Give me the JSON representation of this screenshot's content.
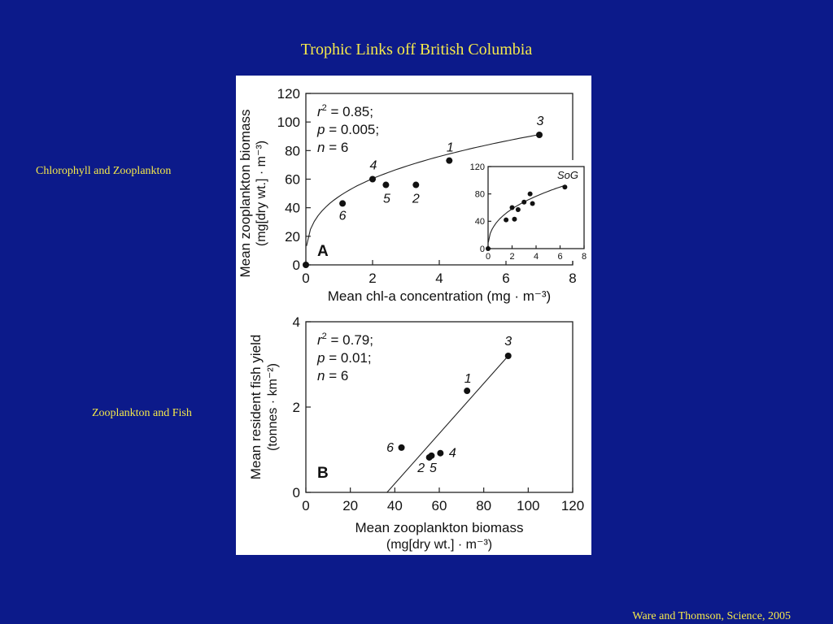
{
  "slide": {
    "title": "Trophic Links off British Columbia",
    "label_top": "Chlorophyll and Zooplankton",
    "label_bottom": "Zooplankton and Fish",
    "citation": "Ware and Thomson, Science, 2005"
  },
  "colors": {
    "background": "#0c1a8a",
    "text": "#f5e94a",
    "panel": "#ffffff"
  },
  "chart_data": [
    {
      "type": "scatter",
      "panel_label": "A",
      "xlabel": "Mean chl-a concentration (mg · m⁻³)",
      "ylabel_line1": "Mean zooplankton biomass",
      "ylabel_line2": "(mg[dry wt.] · m⁻³)",
      "xlim": [
        0,
        8
      ],
      "ylim": [
        0,
        120
      ],
      "xticks": [
        0,
        2,
        4,
        6,
        8
      ],
      "yticks": [
        0,
        20,
        40,
        60,
        80,
        100,
        120
      ],
      "stats": {
        "r2": "= 0.85;",
        "p": "= 0.005;",
        "n": "= 6"
      },
      "points": [
        {
          "x": 0,
          "y": 0,
          "label": ""
        },
        {
          "x": 1.1,
          "y": 43,
          "label": "6"
        },
        {
          "x": 2.0,
          "y": 60,
          "label": "4"
        },
        {
          "x": 2.4,
          "y": 56,
          "label": "5"
        },
        {
          "x": 3.3,
          "y": 56,
          "label": "2"
        },
        {
          "x": 4.3,
          "y": 73,
          "label": "1"
        },
        {
          "x": 7.0,
          "y": 91,
          "label": "3"
        }
      ],
      "fit": "power",
      "inset": {
        "label": "SoG",
        "xlim": [
          0,
          8
        ],
        "ylim": [
          0,
          120
        ],
        "xticks": [
          0,
          2,
          4,
          6,
          8
        ],
        "yticks": [
          0,
          40,
          80,
          120
        ],
        "points": [
          {
            "x": 0,
            "y": 0
          },
          {
            "x": 1.5,
            "y": 42
          },
          {
            "x": 2.0,
            "y": 60
          },
          {
            "x": 2.2,
            "y": 43
          },
          {
            "x": 2.5,
            "y": 57
          },
          {
            "x": 3.0,
            "y": 68
          },
          {
            "x": 3.5,
            "y": 80
          },
          {
            "x": 3.7,
            "y": 66
          },
          {
            "x": 6.4,
            "y": 90
          }
        ]
      }
    },
    {
      "type": "scatter",
      "panel_label": "B",
      "xlabel_line1": "Mean zooplankton biomass",
      "xlabel_line2": "(mg[dry wt.] · m⁻³)",
      "ylabel_line1": "Mean resident fish yield",
      "ylabel_line2": "(tonnes · km⁻²)",
      "xlim": [
        0,
        120
      ],
      "ylim": [
        0,
        4
      ],
      "xticks": [
        0,
        20,
        40,
        60,
        80,
        100,
        120
      ],
      "yticks": [
        0,
        2,
        4
      ],
      "stats": {
        "r2": "= 0.79;",
        "p": "= 0.01;",
        "n": "= 6"
      },
      "points": [
        {
          "x": 43,
          "y": 1.05,
          "label": "6"
        },
        {
          "x": 55.5,
          "y": 0.82,
          "label": "2"
        },
        {
          "x": 56.5,
          "y": 0.86,
          "label": "5"
        },
        {
          "x": 60.5,
          "y": 0.92,
          "label": "4"
        },
        {
          "x": 72.5,
          "y": 2.38,
          "label": "1"
        },
        {
          "x": 91,
          "y": 3.2,
          "label": "3"
        }
      ],
      "fit": "linear"
    }
  ]
}
